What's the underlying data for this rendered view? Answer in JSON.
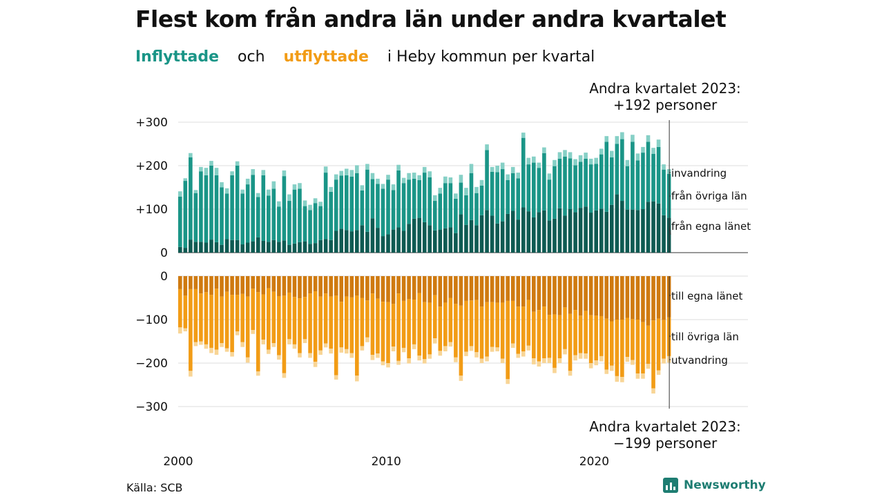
{
  "title": "Flest kom från andra län under andra kvartalet",
  "subtitle": {
    "inflyttade": "Inflyttade",
    "och": "och",
    "utflyttade": "utflyttade",
    "rest": "i Heby  kommun  per  kvartal"
  },
  "annotation_top": {
    "line1": "Andra kvartalet 2023:",
    "line2": "+192 personer"
  },
  "annotation_bottom": {
    "line1": "Andra kvartalet 2023:",
    "line2": "−199 personer"
  },
  "source": "Källa: SCB",
  "brand": "Newsworthy",
  "colors": {
    "in_egna": "#0e5a52",
    "in_ovriga": "#1a9587",
    "in_invandring": "#86d0c6",
    "out_egna": "#cf7a10",
    "out_ovriga": "#f29c16",
    "out_utvandring": "#f8d596",
    "grid": "#dcdcdc",
    "text": "#111111"
  },
  "chart_data": {
    "type": "bar",
    "stacked": true,
    "x_start": "2000 Q1",
    "x_end": "2023 Q2",
    "x_ticks": [
      "2000",
      "2010",
      "2020"
    ],
    "top_panel": {
      "y_ticks": [
        "+300",
        "+200",
        "+100",
        "0"
      ],
      "ylim": [
        0,
        300
      ],
      "series_labels": [
        "invandring",
        "från övriga län",
        "från egna länet"
      ],
      "series": [
        {
          "name": "från egna länet",
          "values": [
            13,
            11,
            30,
            25,
            25,
            23,
            30,
            24,
            18,
            31,
            29,
            29,
            19,
            23,
            26,
            35,
            27,
            25,
            29,
            25,
            28,
            18,
            21,
            24,
            26,
            20,
            22,
            29,
            31,
            29,
            50,
            55,
            52,
            49,
            52,
            63,
            48,
            79,
            57,
            38,
            42,
            53,
            58,
            50,
            66,
            78,
            80,
            70,
            63,
            51,
            53,
            56,
            58,
            45,
            88,
            64,
            75,
            63,
            86,
            98,
            85,
            67,
            72,
            89,
            96,
            76,
            104,
            95,
            81,
            93,
            97,
            74,
            78,
            102,
            85,
            100,
            93,
            103,
            106,
            92,
            97,
            101,
            94,
            110,
            134,
            119,
            99,
            99,
            98,
            100,
            117,
            118,
            113,
            86,
            80
          ]
        },
        {
          "name": "från övriga län",
          "values": [
            116,
            154,
            189,
            112,
            162,
            155,
            170,
            154,
            132,
            105,
            149,
            171,
            117,
            134,
            153,
            93,
            151,
            106,
            118,
            81,
            148,
            101,
            124,
            123,
            81,
            78,
            92,
            78,
            153,
            111,
            118,
            122,
            126,
            126,
            131,
            80,
            143,
            90,
            101,
            109,
            126,
            91,
            131,
            110,
            102,
            92,
            87,
            114,
            110,
            68,
            83,
            104,
            102,
            79,
            73,
            68,
            108,
            74,
            68,
            138,
            101,
            118,
            120,
            78,
            87,
            95,
            160,
            108,
            126,
            102,
            132,
            94,
            121,
            114,
            136,
            117,
            108,
            106,
            110,
            111,
            107,
            125,
            161,
            109,
            116,
            142,
            100,
            156,
            114,
            130,
            138,
            109,
            130,
            105,
            101
          ]
        },
        {
          "name": "invandring",
          "values": [
            12,
            6,
            10,
            7,
            10,
            17,
            11,
            17,
            12,
            12,
            9,
            10,
            9,
            13,
            13,
            9,
            12,
            14,
            17,
            12,
            13,
            15,
            12,
            13,
            13,
            12,
            11,
            10,
            14,
            11,
            12,
            11,
            15,
            15,
            18,
            12,
            13,
            14,
            12,
            11,
            11,
            13,
            13,
            12,
            15,
            14,
            11,
            13,
            14,
            13,
            13,
            15,
            13,
            12,
            18,
            17,
            21,
            14,
            13,
            13,
            11,
            15,
            15,
            13,
            14,
            13,
            12,
            15,
            14,
            12,
            13,
            14,
            14,
            15,
            15,
            14,
            14,
            15,
            14,
            13,
            14,
            13,
            13,
            15,
            18,
            16,
            14,
            16,
            16,
            13,
            15,
            14,
            17,
            12,
            11
          ]
        }
      ]
    },
    "bottom_panel": {
      "y_ticks": [
        "0",
        "−100",
        "−200",
        "−300"
      ],
      "ylim": [
        -300,
        0
      ],
      "series_labels": [
        "till egna länet",
        "till övriga län",
        "utvandring"
      ],
      "series": [
        {
          "name": "till egna länet",
          "values": [
            -30,
            -45,
            -30,
            -30,
            -40,
            -37,
            -43,
            -29,
            -47,
            -36,
            -43,
            -43,
            -41,
            -47,
            -29,
            -37,
            -42,
            -28,
            -36,
            -46,
            -45,
            -38,
            -48,
            -51,
            -48,
            -40,
            -35,
            -47,
            -40,
            -47,
            -45,
            -59,
            -47,
            -49,
            -45,
            -50,
            -56,
            -40,
            -52,
            -59,
            -60,
            -64,
            -40,
            -57,
            -53,
            -54,
            -39,
            -60,
            -61,
            -44,
            -70,
            -61,
            -50,
            -64,
            -68,
            -57,
            -56,
            -55,
            -70,
            -60,
            -60,
            -61,
            -61,
            -57,
            -57,
            -70,
            -70,
            -55,
            -82,
            -78,
            -70,
            -89,
            -88,
            -90,
            -72,
            -87,
            -78,
            -91,
            -80,
            -90,
            -91,
            -92,
            -98,
            -104,
            -100,
            -100,
            -96,
            -99,
            -100,
            -106,
            -114,
            -102,
            -98,
            -101,
            -95
          ]
        },
        {
          "name": "till övriga län",
          "values": [
            -88,
            -75,
            -188,
            -122,
            -110,
            -120,
            -122,
            -140,
            -107,
            -130,
            -132,
            -84,
            -111,
            -140,
            -95,
            -182,
            -104,
            -141,
            -118,
            -136,
            -178,
            -107,
            -109,
            -126,
            -97,
            -137,
            -162,
            -124,
            -115,
            -120,
            -183,
            -105,
            -121,
            -128,
            -184,
            -111,
            -85,
            -141,
            -126,
            -137,
            -140,
            -98,
            -155,
            -108,
            -136,
            -103,
            -144,
            -131,
            -119,
            -99,
            -102,
            -100,
            -102,
            -123,
            -161,
            -117,
            -105,
            -120,
            -120,
            -125,
            -103,
            -103,
            -129,
            -180,
            -98,
            -109,
            -103,
            -105,
            -107,
            -118,
            -119,
            -99,
            -123,
            -99,
            -96,
            -131,
            -104,
            -86,
            -98,
            -110,
            -103,
            -92,
            -117,
            -102,
            -130,
            -132,
            -90,
            -94,
            -124,
            -118,
            -88,
            -156,
            -119,
            -89,
            -89
          ]
        },
        {
          "name": "utvandring",
          "values": [
            -14,
            -7,
            -13,
            -9,
            -8,
            -10,
            -12,
            -12,
            -9,
            -8,
            -10,
            -9,
            -11,
            -12,
            -9,
            -10,
            -11,
            -10,
            -9,
            -10,
            -11,
            -12,
            -10,
            -10,
            -9,
            -11,
            -12,
            -10,
            -9,
            -11,
            -10,
            -12,
            -10,
            -11,
            -13,
            -10,
            -11,
            -12,
            -10,
            -9,
            -10,
            -11,
            -9,
            -10,
            -12,
            -11,
            -11,
            -10,
            -10,
            -12,
            -11,
            -12,
            -10,
            -11,
            -12,
            -10,
            -11,
            -12,
            -10,
            -11,
            -11,
            -9,
            -10,
            -11,
            -10,
            -9,
            -12,
            -11,
            -14,
            -12,
            -11,
            -12,
            -12,
            -11,
            -12,
            -11,
            -12,
            -13,
            -12,
            -12,
            -11,
            -12,
            -10,
            -12,
            -13,
            -12,
            -11,
            -11,
            -12,
            -12,
            -11,
            -12,
            -10,
            -11,
            -15
          ]
        }
      ]
    }
  }
}
